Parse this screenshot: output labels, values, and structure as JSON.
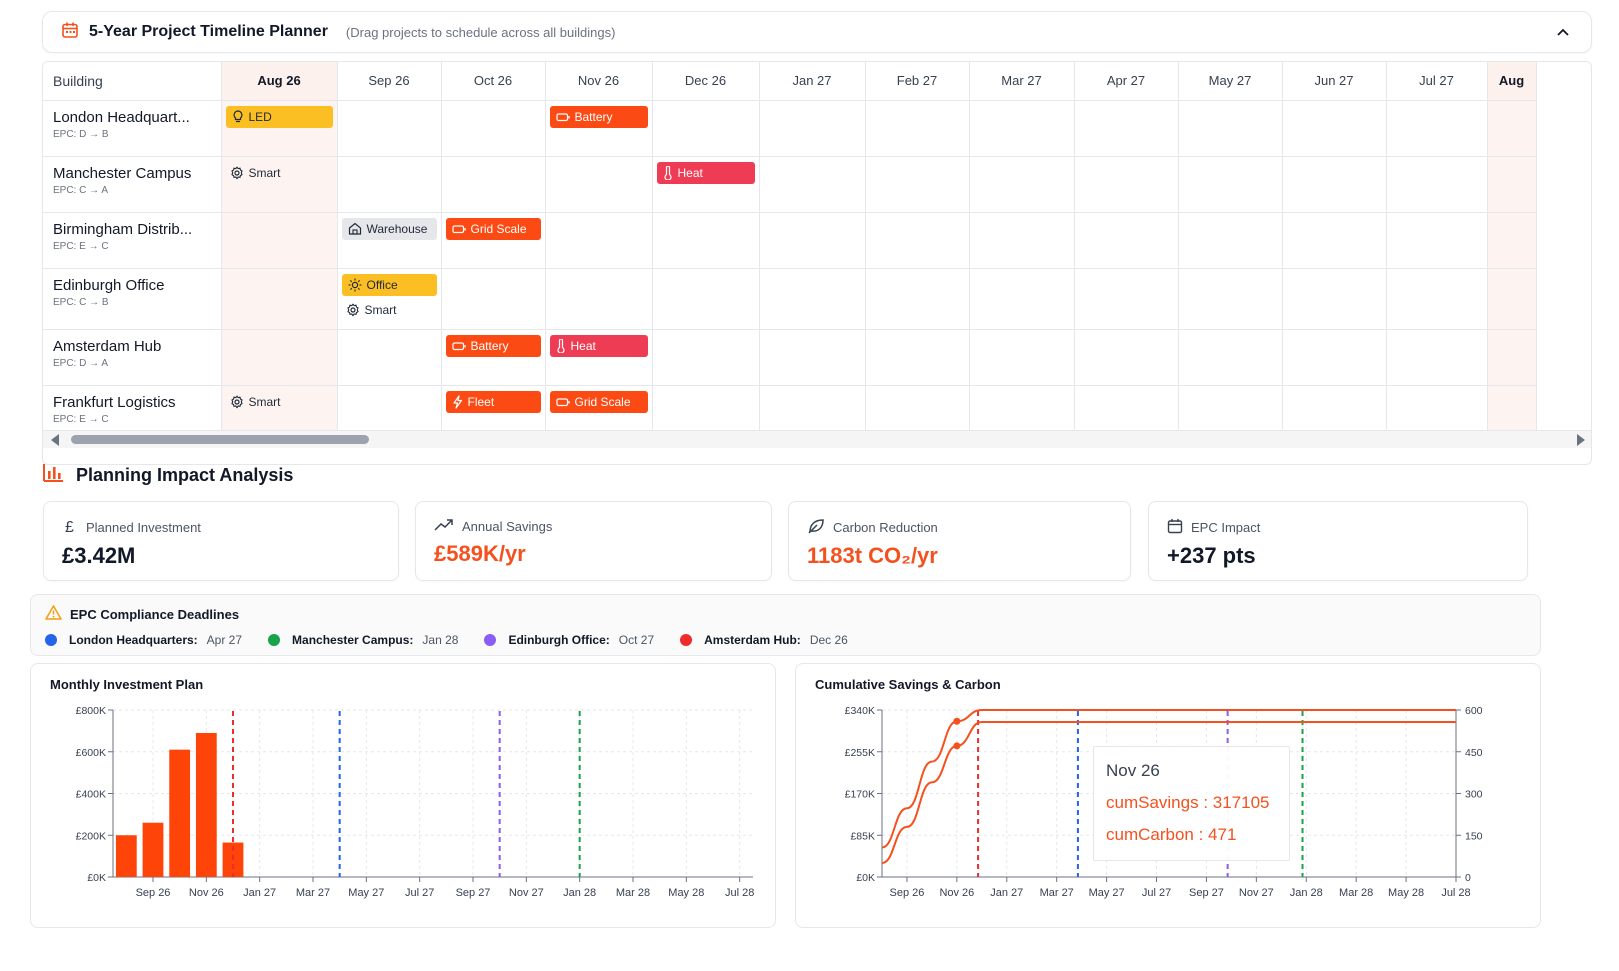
{
  "planner": {
    "title": "5-Year Project Timeline Planner",
    "hint": "(Drag projects to schedule across all buildings)",
    "building_header": "Building",
    "months": [
      "Aug 26",
      "Sep 26",
      "Oct 26",
      "Nov 26",
      "Dec 26",
      "Jan 27",
      "Feb 27",
      "Mar 27",
      "Apr 27",
      "May 27",
      "Jun 27",
      "Jul 27",
      "Aug"
    ],
    "buildings": [
      {
        "name": "London Headquart...",
        "epc": "EPC: D → B",
        "cells": {
          "0": [
            {
              "label": "LED",
              "style": "yellow",
              "icon": "lightbulb-icon"
            }
          ],
          "3": [
            {
              "label": "Battery",
              "style": "orange",
              "icon": "battery-icon"
            }
          ]
        }
      },
      {
        "name": "Manchester Campus",
        "epc": "EPC: C → A",
        "cells": {
          "0": [
            {
              "label": "Smart",
              "style": "plain",
              "icon": "gear-icon"
            }
          ],
          "4": [
            {
              "label": "Heat",
              "style": "red",
              "icon": "thermometer-icon"
            }
          ]
        }
      },
      {
        "name": "Birmingham Distrib...",
        "epc": "EPC: E → C",
        "cells": {
          "1": [
            {
              "label": "Warehouse",
              "style": "gray",
              "icon": "home-icon"
            }
          ],
          "2": [
            {
              "label": "Grid Scale",
              "style": "orange",
              "icon": "battery-icon"
            }
          ]
        }
      },
      {
        "name": "Edinburgh Office",
        "epc": "EPC: C → B",
        "cells": {
          "1": [
            {
              "label": "Office",
              "style": "yellow",
              "icon": "sun-icon"
            },
            {
              "label": "Smart",
              "style": "plain",
              "icon": "gear-icon"
            }
          ]
        }
      },
      {
        "name": "Amsterdam Hub",
        "epc": "EPC: D → A",
        "cells": {
          "2": [
            {
              "label": "Battery",
              "style": "orange",
              "icon": "battery-icon"
            }
          ],
          "3": [
            {
              "label": "Heat",
              "style": "red",
              "icon": "thermometer-icon"
            }
          ]
        }
      },
      {
        "name": "Frankfurt Logistics",
        "epc": "EPC: E → C",
        "cells": {
          "0": [
            {
              "label": "Smart",
              "style": "plain",
              "icon": "gear-icon"
            }
          ],
          "2": [
            {
              "label": "Fleet",
              "style": "orange",
              "icon": "lightning-icon"
            }
          ],
          "3": [
            {
              "label": "Grid Scale",
              "style": "orange",
              "icon": "battery-icon"
            }
          ]
        }
      }
    ]
  },
  "impact": {
    "title": "Planning Impact Analysis",
    "kpis": [
      {
        "label": "Planned Investment",
        "value": "£3.42M",
        "icon": "pound-icon",
        "accent": false
      },
      {
        "label": "Annual Savings",
        "value": "£589K/yr",
        "icon": "trending-up-icon",
        "accent": true
      },
      {
        "label": "Carbon Reduction",
        "value": "1183t CO₂/yr",
        "icon": "leaf-icon",
        "accent": true
      },
      {
        "label": "EPC Impact",
        "value": "+237 pts",
        "icon": "calendar-icon",
        "accent": false
      }
    ]
  },
  "deadlines": {
    "title": "EPC Compliance Deadlines",
    "items": [
      {
        "name": "London Headquarters:",
        "date": "Apr 27",
        "color": "#2563eb"
      },
      {
        "name": "Manchester Campus:",
        "date": "Jan 28",
        "color": "#16a34a"
      },
      {
        "name": "Edinburgh Office:",
        "date": "Oct 27",
        "color": "#8b5cf6"
      },
      {
        "name": "Amsterdam Hub:",
        "date": "Dec 26",
        "color": "#ef2b2b"
      }
    ]
  },
  "colors": {
    "accent": "#f4511e",
    "bar": "#ff4409",
    "red": "#ef2b2b",
    "blue": "#2563eb",
    "purple": "#8b5cf6",
    "green": "#16a34a"
  },
  "chart_data": [
    {
      "type": "bar",
      "title": "Monthly Investment Plan",
      "x_ticks": [
        "Sep 26",
        "Nov 26",
        "Jan 27",
        "Mar 27",
        "May 27",
        "Jul 27",
        "Sep 27",
        "Nov 27",
        "Jan 28",
        "Mar 28",
        "May 28",
        "Jul 28"
      ],
      "months": [
        "Aug 26",
        "Sep 26",
        "Oct 26",
        "Nov 26",
        "Dec 26",
        "Jan 27",
        "Feb 27",
        "Mar 27",
        "Apr 27",
        "May 27",
        "Jun 27",
        "Jul 27",
        "Aug 27",
        "Sep 27",
        "Oct 27",
        "Nov 27",
        "Dec 27",
        "Jan 28",
        "Feb 28",
        "Mar 28",
        "Apr 28",
        "May 28",
        "Jun 28",
        "Jul 28"
      ],
      "values": [
        200000,
        260000,
        610000,
        690000,
        165000,
        0,
        0,
        0,
        0,
        0,
        0,
        0,
        0,
        0,
        0,
        0,
        0,
        0,
        0,
        0,
        0,
        0,
        0,
        0
      ],
      "y_ticks": [
        "£0K",
        "£200K",
        "£400K",
        "£600K",
        "£800K"
      ],
      "ylim": [
        0,
        800000
      ],
      "reference_lines": [
        {
          "x": "Dec 26",
          "color": "#ef2b2b"
        },
        {
          "x": "Apr 27",
          "color": "#2563eb"
        },
        {
          "x": "Oct 27",
          "color": "#8b5cf6"
        },
        {
          "x": "Jan 28",
          "color": "#16a34a"
        }
      ],
      "grid": true
    },
    {
      "type": "line",
      "title": "Cumulative Savings & Carbon",
      "x_ticks": [
        "Sep 26",
        "Nov 26",
        "Jan 27",
        "Mar 27",
        "May 27",
        "Jul 27",
        "Sep 27",
        "Nov 27",
        "Jan 28",
        "Mar 28",
        "May 28",
        "Jul 28"
      ],
      "months": [
        "Aug 26",
        "Sep 26",
        "Oct 26",
        "Nov 26",
        "Dec 26",
        "Jan 27",
        "Feb 27",
        "Mar 27",
        "Apr 27",
        "May 27",
        "Jun 27",
        "Jul 27",
        "Aug 27",
        "Sep 27",
        "Oct 27",
        "Nov 27",
        "Dec 27",
        "Jan 28",
        "Feb 28",
        "Mar 28",
        "Apr 28",
        "May 28",
        "Jun 28",
        "Jul 28"
      ],
      "series": [
        {
          "name": "cumSavings",
          "axis": "left",
          "values": [
            60000,
            140000,
            235000,
            317105,
            340000,
            340000,
            340000,
            340000,
            340000,
            340000,
            340000,
            340000,
            340000,
            340000,
            340000,
            340000,
            340000,
            340000,
            340000,
            340000,
            340000,
            340000,
            340000,
            340000
          ]
        },
        {
          "name": "cumCarbon",
          "axis": "right",
          "values": [
            50,
            180,
            340,
            471,
            557,
            557,
            557,
            557,
            557,
            557,
            557,
            557,
            557,
            557,
            557,
            557,
            557,
            557,
            557,
            557,
            557,
            557,
            557,
            557
          ]
        }
      ],
      "y_left_ticks": [
        "£0K",
        "£85K",
        "£170K",
        "£255K",
        "£340K"
      ],
      "y_left_lim": [
        0,
        340000
      ],
      "y_right_ticks": [
        "0",
        "150",
        "300",
        "450",
        "600"
      ],
      "y_right_lim": [
        0,
        600
      ],
      "reference_lines": [
        {
          "x": "Dec 26",
          "color": "#ef2b2b"
        },
        {
          "x": "Apr 27",
          "color": "#2563eb"
        },
        {
          "x": "Oct 27",
          "color": "#8b5cf6"
        },
        {
          "x": "Jan 28",
          "color": "#16a34a"
        }
      ],
      "tooltip": {
        "title": "Nov 26",
        "lines": [
          "cumSavings : 317105",
          "cumCarbon : 471"
        ]
      },
      "grid": true
    }
  ]
}
